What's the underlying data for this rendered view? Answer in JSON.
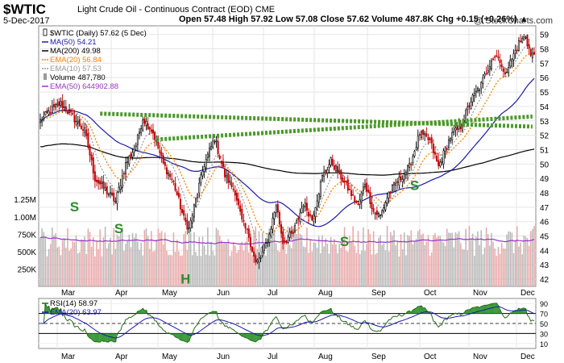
{
  "header": {
    "symbol": "$WTIC",
    "subtitle": "Light Crude Oil - Continuous Contract (EOD)  CME",
    "date": "5-Dec-2017",
    "ohlc": "Open 57.48  High 57.92  Low 57.08  Close 57.62  Volume 487.8K  Chg +0.15 (+0.26%) ▲",
    "credit": "@ StockCharts.com"
  },
  "colors": {
    "up": "#ffffff",
    "down": "#000000",
    "ma50": "#1a1aa8",
    "ma200": "#000000",
    "ema20": "#ff8000",
    "ema10": "#999999",
    "vol_up": "#b8b8b8",
    "vol_down": "#e8a8a8",
    "ema50vol": "#9932cc",
    "trend": "#4a9a2a",
    "label": "#2e8b2e",
    "rsi": "#2a6a1a",
    "rsi_ema": "#1a1aa8"
  },
  "legend": [
    {
      "label": "$WTIC (Daily) 57.62 (5 Dec)",
      "color": "#000000",
      "kind": "candle"
    },
    {
      "label": "MA(50) 54.21",
      "color": "#1a1aa8",
      "kind": "line"
    },
    {
      "label": "MA(200) 49.98",
      "color": "#000000",
      "kind": "line"
    },
    {
      "label": "EMA(20) 56.84",
      "color": "#ff8000",
      "kind": "dot"
    },
    {
      "label": "EMA(10) 57.53",
      "color": "#999999",
      "kind": "dot"
    },
    {
      "label": "Volume 487,780",
      "color": "#666666",
      "kind": "bar"
    },
    {
      "label": "EMA(50) 644902.88",
      "color": "#9932cc",
      "kind": "line"
    }
  ],
  "chart_data": [
    {
      "type": "candlestick",
      "title": "$WTIC (Daily)",
      "x_labels": [
        "Mar",
        "Apr",
        "May",
        "Jun",
        "Jul",
        "Aug",
        "Sep",
        "Oct",
        "Nov",
        "Dec"
      ],
      "ylim": [
        41.5,
        59.6
      ],
      "y_ticks": [
        42,
        43,
        44,
        45,
        46,
        47,
        48,
        49,
        50,
        51,
        52,
        53,
        54,
        55,
        56,
        57,
        58,
        59
      ],
      "close_anchors": [
        {
          "d": 0,
          "v": 53.0
        },
        {
          "d": 6,
          "v": 53.7
        },
        {
          "d": 12,
          "v": 54.2
        },
        {
          "d": 18,
          "v": 53.4
        },
        {
          "d": 26,
          "v": 52.3
        },
        {
          "d": 32,
          "v": 49.0
        },
        {
          "d": 38,
          "v": 48.2
        },
        {
          "d": 44,
          "v": 47.4
        },
        {
          "d": 50,
          "v": 50.0
        },
        {
          "d": 56,
          "v": 51.3
        },
        {
          "d": 60,
          "v": 53.2
        },
        {
          "d": 66,
          "v": 52.2
        },
        {
          "d": 72,
          "v": 50.0
        },
        {
          "d": 78,
          "v": 48.7
        },
        {
          "d": 84,
          "v": 46.2
        },
        {
          "d": 87,
          "v": 45.5
        },
        {
          "d": 92,
          "v": 48.0
        },
        {
          "d": 96,
          "v": 50.0
        },
        {
          "d": 102,
          "v": 51.8
        },
        {
          "d": 108,
          "v": 49.2
        },
        {
          "d": 114,
          "v": 48.1
        },
        {
          "d": 118,
          "v": 46.0
        },
        {
          "d": 122,
          "v": 45.0
        },
        {
          "d": 126,
          "v": 43.1
        },
        {
          "d": 129,
          "v": 43.5
        },
        {
          "d": 134,
          "v": 45.1
        },
        {
          "d": 138,
          "v": 47.2
        },
        {
          "d": 142,
          "v": 44.6
        },
        {
          "d": 148,
          "v": 45.2
        },
        {
          "d": 154,
          "v": 47.3
        },
        {
          "d": 159,
          "v": 46.2
        },
        {
          "d": 165,
          "v": 49.1
        },
        {
          "d": 170,
          "v": 50.2
        },
        {
          "d": 175,
          "v": 49.3
        },
        {
          "d": 180,
          "v": 48.3
        },
        {
          "d": 186,
          "v": 47.1
        },
        {
          "d": 190,
          "v": 48.7
        },
        {
          "d": 195,
          "v": 46.7
        },
        {
          "d": 199,
          "v": 46.4
        },
        {
          "d": 204,
          "v": 48.0
        },
        {
          "d": 210,
          "v": 48.9
        },
        {
          "d": 216,
          "v": 49.8
        },
        {
          "d": 222,
          "v": 52.1
        },
        {
          "d": 228,
          "v": 51.6
        },
        {
          "d": 233,
          "v": 49.8
        },
        {
          "d": 240,
          "v": 51.9
        },
        {
          "d": 246,
          "v": 52.6
        },
        {
          "d": 252,
          "v": 54.4
        },
        {
          "d": 258,
          "v": 55.5
        },
        {
          "d": 264,
          "v": 57.3
        },
        {
          "d": 268,
          "v": 57.6
        },
        {
          "d": 271,
          "v": 56.2
        },
        {
          "d": 276,
          "v": 57.3
        },
        {
          "d": 280,
          "v": 58.4
        },
        {
          "d": 284,
          "v": 58.9
        },
        {
          "d": 287,
          "v": 57.5
        },
        {
          "d": 289,
          "v": 57.6
        }
      ],
      "trendlines": [
        {
          "from_day": 35,
          "from": 53.5,
          "to_day": 288,
          "to": 52.6
        },
        {
          "from_day": 68,
          "from": 51.7,
          "to_day": 288,
          "to": 53.3
        }
      ],
      "annotations": [
        {
          "text": "S",
          "day": 20,
          "value": 46.7
        },
        {
          "text": "S",
          "day": 46,
          "value": 45.2
        },
        {
          "text": "H",
          "day": 85,
          "value": 41.7
        },
        {
          "text": "S",
          "day": 178,
          "value": 44.3
        },
        {
          "text": "S",
          "day": 219,
          "value": 48.2
        }
      ]
    },
    {
      "type": "bar",
      "title": "Volume",
      "y_ticks": [
        "250K",
        "500K",
        "750K",
        "1.00M",
        "1.25M"
      ],
      "ema50_label": "EMA(50) 644902.88",
      "typical_range": [
        430000,
        870000
      ]
    },
    {
      "type": "line",
      "title": "RSI(14) 58.97",
      "series": [
        {
          "name": "RSI(14)",
          "last": 58.97
        },
        {
          "name": "EMA(20)",
          "last": 63.97
        }
      ],
      "ylim": [
        0,
        100
      ],
      "y_ticks": [
        10,
        30,
        50,
        70,
        90
      ],
      "levels": [
        30,
        70
      ]
    }
  ]
}
